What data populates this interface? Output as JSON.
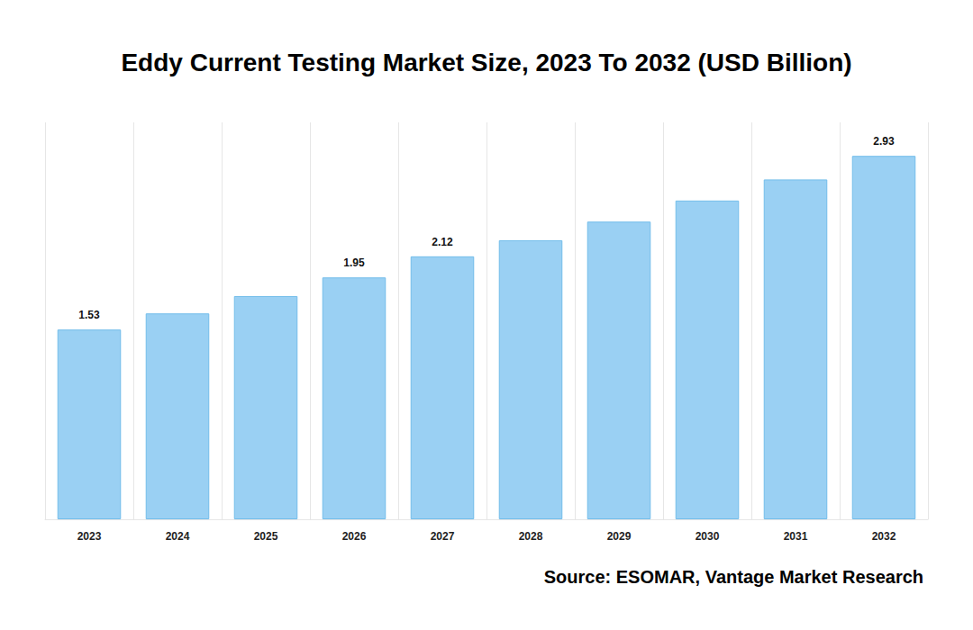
{
  "chart_data": {
    "type": "bar",
    "title": "Eddy Current Testing Market Size, 2023 To 2032 (USD Billion)",
    "source": "Source: ESOMAR, Vantage Market Research",
    "categories": [
      "2023",
      "2024",
      "2025",
      "2026",
      "2027",
      "2028",
      "2029",
      "2030",
      "2031",
      "2032"
    ],
    "values": [
      1.53,
      1.66,
      1.8,
      1.95,
      2.12,
      2.25,
      2.4,
      2.57,
      2.74,
      2.93
    ],
    "value_labels": [
      "1.53",
      null,
      null,
      "1.95",
      "2.12",
      null,
      null,
      null,
      null,
      "2.93"
    ],
    "color": "#9ad0f3",
    "ylim": [
      0,
      3.2
    ],
    "grid": true,
    "tick_labels": "x",
    "data_labels": true
  }
}
